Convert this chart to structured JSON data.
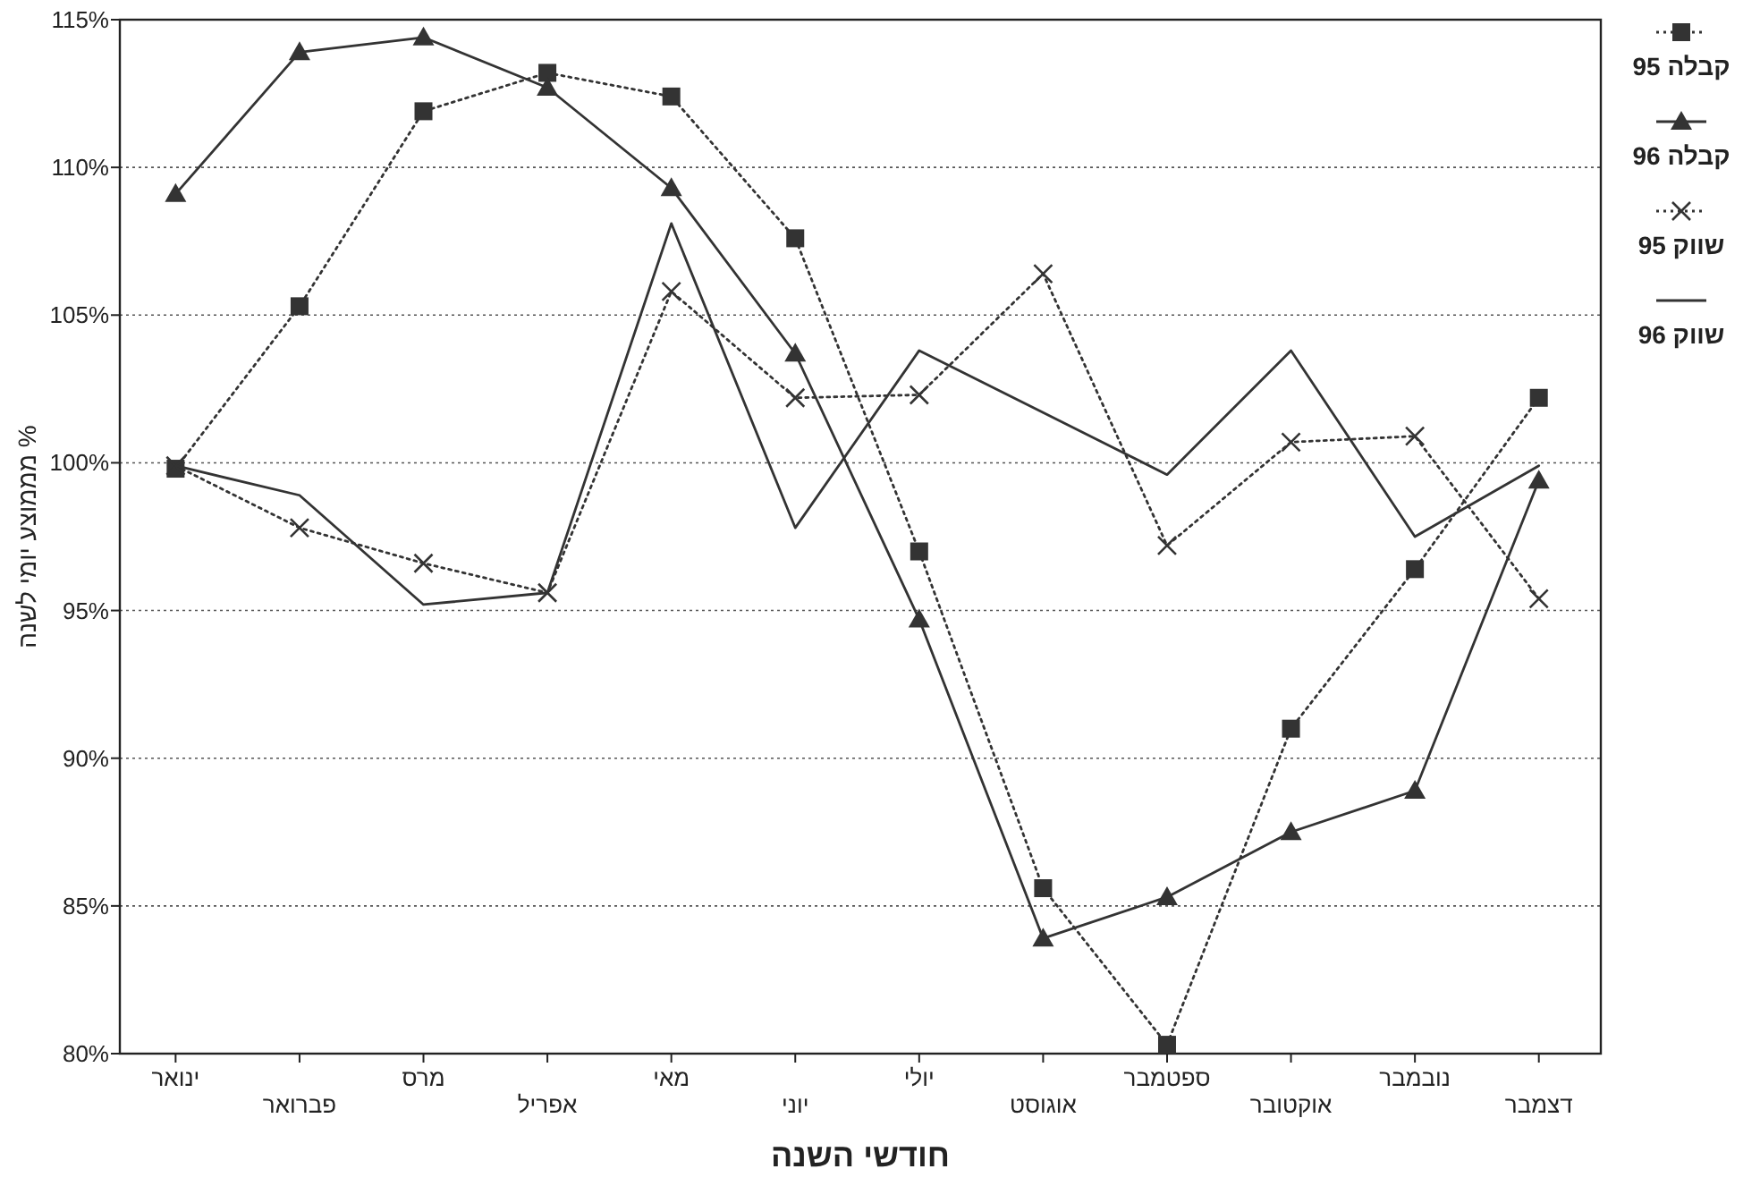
{
  "chart_data": {
    "type": "line",
    "xlabel": "חודשי השנה",
    "ylabel": "% מממוצע יומי לשנה",
    "categories": [
      "ינואר",
      "פברואר",
      "מרס",
      "אפריל",
      "מאי",
      "יוני",
      "יולי",
      "אוגוסט",
      "ספטמבר",
      "אוקטובר",
      "נובמבר",
      "דצמבר"
    ],
    "ylim": [
      80,
      115
    ],
    "yticks": [
      {
        "value": 80,
        "label": "80%"
      },
      {
        "value": 85,
        "label": "85%"
      },
      {
        "value": 90,
        "label": "90%"
      },
      {
        "value": 95,
        "label": "95%"
      },
      {
        "value": 100,
        "label": "100%"
      },
      {
        "value": 105,
        "label": "105%"
      },
      {
        "value": 110,
        "label": "110%"
      },
      {
        "value": 115,
        "label": "115%"
      }
    ],
    "grid": "y",
    "legend": "right",
    "series": [
      {
        "name": "קבלה 95",
        "color": "#333333",
        "marker": "square",
        "line_style": "dotted",
        "values": [
          99.8,
          105.3,
          111.9,
          113.2,
          112.4,
          107.6,
          97.0,
          85.6,
          80.3,
          91.0,
          96.4,
          102.2
        ]
      },
      {
        "name": "קבלה 96",
        "color": "#333333",
        "marker": "triangle",
        "line_style": "solid",
        "values": [
          109.1,
          113.9,
          114.4,
          112.7,
          109.3,
          103.7,
          94.7,
          83.9,
          85.3,
          87.5,
          88.9,
          99.4
        ]
      },
      {
        "name": "שווק 95",
        "color": "#333333",
        "marker": "cross",
        "line_style": "dotted",
        "values": [
          99.9,
          97.8,
          96.6,
          95.6,
          105.8,
          102.2,
          102.3,
          106.4,
          97.2,
          100.7,
          100.9,
          95.4
        ]
      },
      {
        "name": "שווק 96",
        "color": "#333333",
        "marker": "none",
        "line_style": "solid",
        "values": [
          99.9,
          98.9,
          95.2,
          95.6,
          108.1,
          97.8,
          103.8,
          101.7,
          99.6,
          103.8,
          97.5,
          99.9
        ]
      }
    ]
  }
}
